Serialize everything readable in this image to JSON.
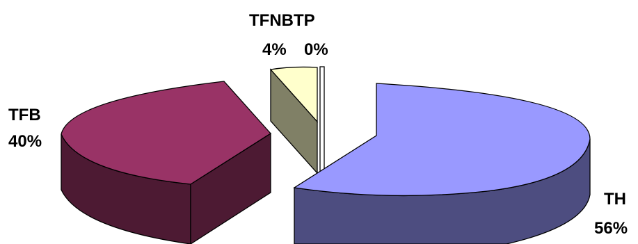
{
  "chart_data": {
    "type": "pie",
    "style": "3d-exploded",
    "legend": "none",
    "slices": [
      {
        "name": "TH",
        "value": 56,
        "label": "TH",
        "pct_label": "56%",
        "color": "#9999FF",
        "side_color": "#4D4D80"
      },
      {
        "name": "TFB",
        "value": 40,
        "label": "TFB",
        "pct_label": "40%",
        "color": "#993366",
        "side_color": "#4D1A33"
      },
      {
        "name": "TFNB",
        "value": 4,
        "label": "TFNB",
        "pct_label": "4%",
        "color": "#FFFFCC",
        "side_color": "#808066"
      },
      {
        "name": "TP",
        "value": 0,
        "label": "TP",
        "pct_label": "0%",
        "color": "#FFFFFF",
        "side_color": "#FFFFFF"
      }
    ]
  }
}
